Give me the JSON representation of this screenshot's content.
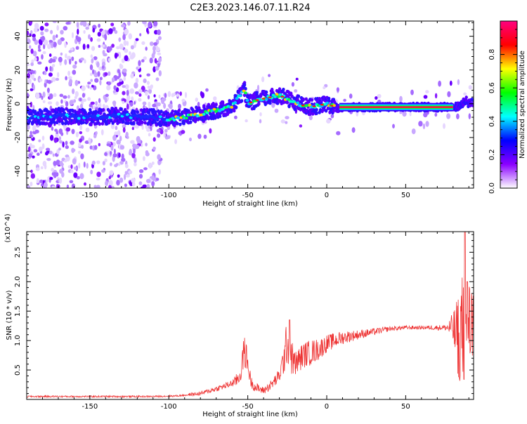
{
  "title": "C2E3.2023.146.07.11.R24",
  "chart_data": [
    {
      "type": "heatmap",
      "xlabel": "Height of straight line (km)",
      "ylabel": "Frequency (Hz)",
      "xlim": [
        -190,
        93
      ],
      "ylim": [
        -50,
        49
      ],
      "xticks": [
        -150,
        -100,
        -50,
        0,
        50
      ],
      "yticks": [
        -40,
        -20,
        0,
        20,
        40
      ],
      "colorbar": {
        "label": "Normalized spectral amplitude",
        "range": [
          0,
          1
        ],
        "ticks": [
          "0.0",
          "0.2",
          "0.4",
          "0.6",
          "0.8"
        ],
        "colormap": [
          "#ffffff",
          "#8a00ff",
          "#0000ff",
          "#00ffff",
          "#00ff00",
          "#ffff00",
          "#ff0000",
          "#ff0080"
        ]
      },
      "ridge": {
        "x": [
          -190,
          -170,
          -150,
          -130,
          -110,
          -100,
          -90,
          -80,
          -70,
          -60,
          -55,
          -52,
          -50,
          -45,
          -40,
          -35,
          -30,
          -25,
          -20,
          -15,
          -10,
          -5,
          0,
          5,
          8,
          10,
          20,
          40,
          60,
          80,
          85,
          88,
          90,
          93
        ],
        "y": [
          -8,
          -7,
          -8,
          -7,
          -8,
          -9,
          -8,
          -6,
          -4,
          -2,
          5,
          8,
          0,
          2,
          3,
          4,
          5,
          3,
          1,
          -1,
          -2,
          -1,
          0,
          -2,
          -3,
          -2,
          -2,
          -2,
          -2,
          -2,
          -1,
          2,
          0,
          1
        ]
      }
    },
    {
      "type": "line",
      "xlabel": "Height of straight line (km)",
      "ylabel": "SNR (10 * v/v)",
      "y_multiplier": "(x10^4)",
      "xlim": [
        -190,
        93
      ],
      "ylim": [
        0,
        2.85
      ],
      "xticks": [
        -150,
        -100,
        -50,
        0,
        50
      ],
      "yticks": [
        "0.5",
        "1.0",
        "1.5",
        "2.0",
        "2.5"
      ],
      "color": "#ee3333",
      "envelope": {
        "x": [
          -190,
          -150,
          -110,
          -95,
          -80,
          -70,
          -62,
          -58,
          -55,
          -52,
          -50,
          -48,
          -45,
          -40,
          -35,
          -30,
          -27,
          -25,
          -22,
          -20,
          -15,
          -10,
          -5,
          0,
          10,
          20,
          30,
          40,
          50,
          60,
          70,
          75,
          78,
          80,
          82,
          84,
          86,
          88,
          90,
          93
        ],
        "y": [
          0.05,
          0.05,
          0.05,
          0.06,
          0.1,
          0.18,
          0.25,
          0.3,
          0.4,
          0.85,
          0.6,
          0.3,
          0.2,
          0.15,
          0.25,
          0.4,
          0.7,
          1.0,
          0.7,
          0.6,
          0.75,
          0.8,
          0.85,
          0.95,
          1.05,
          1.1,
          1.15,
          1.2,
          1.22,
          1.22,
          1.22,
          1.22,
          1.22,
          1.2,
          1.05,
          1.1,
          1.2,
          1.25,
          1.3,
          1.3
        ]
      },
      "noise": {
        "x": [
          -90,
          -60,
          -55,
          -52,
          -50,
          -48,
          -40,
          -30,
          -25,
          -22,
          -20,
          -10,
          0,
          20,
          40,
          60,
          75,
          78,
          80,
          82,
          84,
          86,
          88,
          90,
          93
        ],
        "amp": [
          0.02,
          0.06,
          0.15,
          0.3,
          0.2,
          0.1,
          0.06,
          0.12,
          0.4,
          0.3,
          0.22,
          0.22,
          0.15,
          0.08,
          0.04,
          0.03,
          0.05,
          0.15,
          0.3,
          0.6,
          0.8,
          1.0,
          1.2,
          0.8,
          0.6
        ]
      }
    }
  ]
}
